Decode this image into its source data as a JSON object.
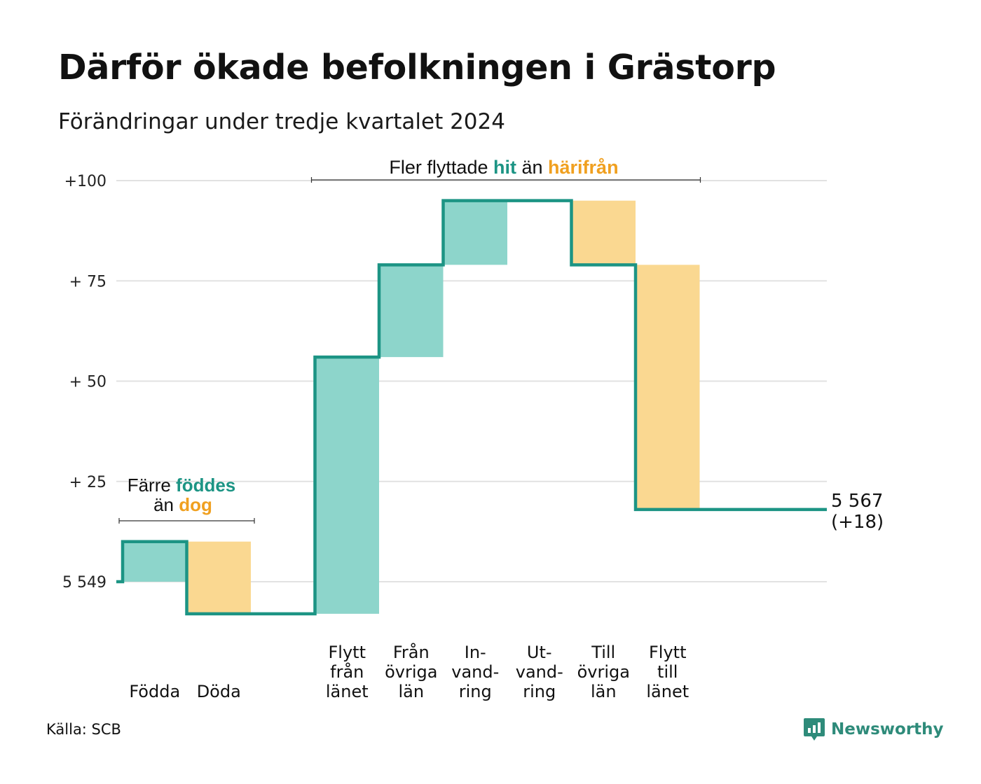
{
  "title": "Därför ökade befolkningen i Grästorp",
  "subtitle": "Förändringar under tredje kvartalet 2024",
  "source": "Källa: SCB",
  "brand": {
    "name": "Newsworthy",
    "icon": "newsworthy-logo-icon"
  },
  "colors": {
    "increase_fill": "#8dd5cb",
    "decrease_fill": "#fad891",
    "step_line": "#1c9484",
    "increase_text": "#1c9484",
    "decrease_text": "#f0a020",
    "grid": "#e2e2e2"
  },
  "chart_data": {
    "type": "waterfall",
    "start_value": 5549,
    "start_label": "5 549",
    "y_ticks": [
      {
        "value": 0,
        "label": "5 549"
      },
      {
        "value": 25,
        "label": "+ 25"
      },
      {
        "value": 50,
        "label": "+ 50"
      },
      {
        "value": 75,
        "label": "+ 75"
      },
      {
        "value": 100,
        "label": "+100"
      }
    ],
    "ylim": [
      -12,
      100
    ],
    "categories": [
      {
        "lines": [
          "Födda"
        ],
        "change": 10
      },
      {
        "lines": [
          "Döda"
        ],
        "change": -18
      },
      {
        "lines": [
          ""
        ],
        "change": 0
      },
      {
        "lines": [
          "Flytt",
          "från",
          "länet"
        ],
        "change": 64
      },
      {
        "lines": [
          "Från",
          "övriga",
          "län"
        ],
        "change": 23
      },
      {
        "lines": [
          "In-",
          "vand-",
          "ring"
        ],
        "change": 16
      },
      {
        "lines": [
          "Ut-",
          "vand-",
          "ring"
        ],
        "change": 0
      },
      {
        "lines": [
          "Till",
          "övriga",
          "län"
        ],
        "change": -16
      },
      {
        "lines": [
          "Flytt",
          "till",
          "länet"
        ],
        "change": -61
      }
    ],
    "end_value": 5567,
    "end_label": "5 567",
    "end_change_label": "(+18)",
    "annotations": [
      {
        "segments": [
          {
            "text": "Färre ",
            "style": "plain"
          },
          {
            "text": "föddes",
            "style": "increase"
          }
        ]
      },
      {
        "segments": [
          {
            "text": "än ",
            "style": "plain"
          },
          {
            "text": "dog",
            "style": "decrease"
          }
        ]
      },
      {
        "segments": [
          {
            "text": "Fler flyttade ",
            "style": "plain"
          },
          {
            "text": "hit",
            "style": "increase"
          },
          {
            "text": " än ",
            "style": "plain"
          },
          {
            "text": "härifrån",
            "style": "decrease"
          }
        ]
      }
    ]
  }
}
